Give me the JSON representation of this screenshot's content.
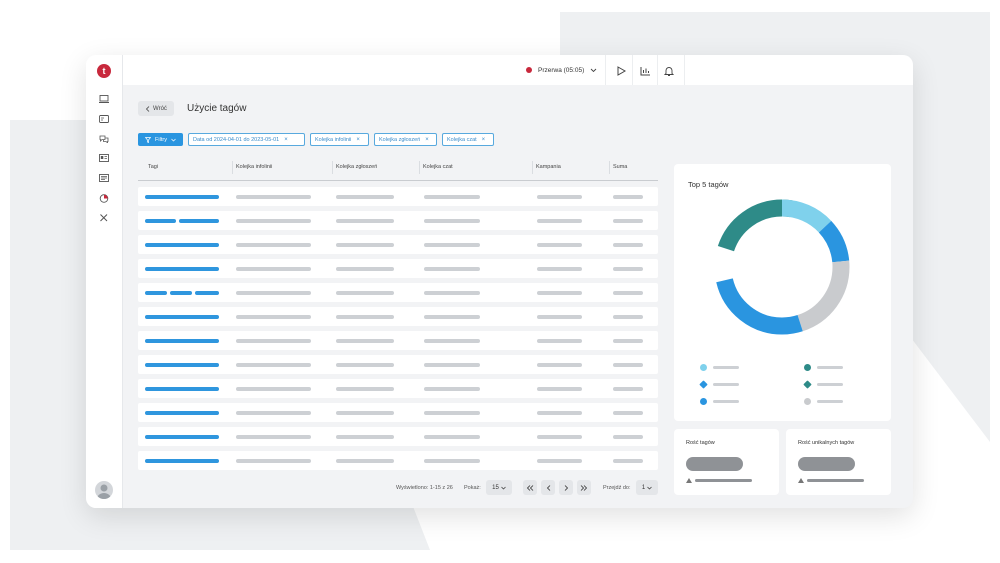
{
  "topbar": {
    "status_label": "Przerwa (05:05)"
  },
  "nav": {
    "back_label": "Wróć",
    "page_title": "Użycie tagów"
  },
  "filters": {
    "button_label": "Filtry",
    "chips": [
      "Data od 2024-04-01 do 2023-05-01",
      "Kolejka infolinii",
      "Kolejka zgłoszeń",
      "Kolejka czat"
    ]
  },
  "table": {
    "columns": [
      "Tagi",
      "Kolejka infolinii",
      "Kolejka zgłoszeń",
      "Kolejka czat",
      "Kampania",
      "Suma"
    ]
  },
  "pagination": {
    "showing_label": "Wyświetlono: 1-15 z 26",
    "show_label": "Pokaż:",
    "page_size": "15",
    "goto_label": "Przejdź do:",
    "goto_value": "1"
  },
  "donut_card": {
    "title": "Top 5 tagów"
  },
  "stat_cards": [
    {
      "title": "Rość tagów"
    },
    {
      "title": "Rość unikalnych tagów"
    }
  ],
  "colors": {
    "accent": "#2a95e0",
    "brand": "#c8283c",
    "teal": "#2e8b88",
    "light_blue": "#7fd1ec",
    "gray": "#c9cbce"
  }
}
